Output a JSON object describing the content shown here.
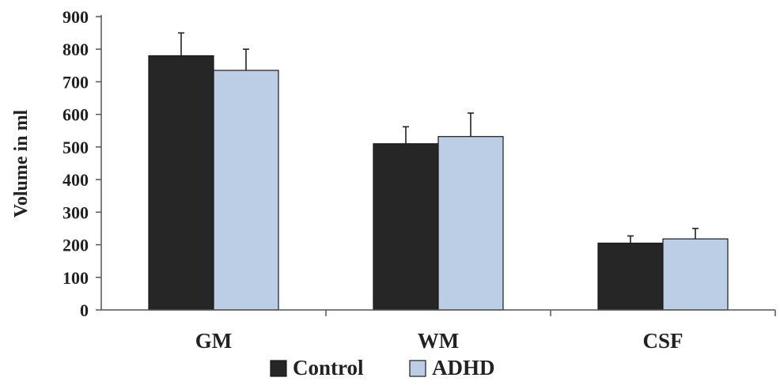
{
  "chart_data": {
    "type": "bar",
    "categories": [
      "GM",
      "WM",
      "CSF"
    ],
    "series": [
      {
        "name": "Control",
        "values": [
          780,
          510,
          205
        ],
        "errors": [
          70,
          52,
          22
        ],
        "color": "#262626"
      },
      {
        "name": "ADHD",
        "values": [
          735,
          532,
          218
        ],
        "errors": [
          65,
          72,
          32
        ],
        "color": "#bccde6"
      }
    ],
    "title": "",
    "xlabel": "",
    "ylabel": "Volume in ml",
    "ylim": [
      0,
      900
    ],
    "yticks": [
      0,
      100,
      200,
      300,
      400,
      500,
      600,
      700,
      800,
      900
    ],
    "grid": false,
    "legend_position": "bottom-center"
  }
}
